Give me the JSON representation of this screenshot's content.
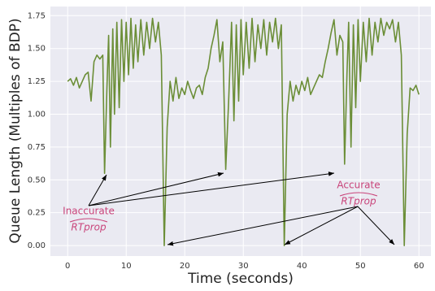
{
  "chart_data": {
    "type": "line",
    "xlabel": "Time (seconds)",
    "ylabel": "Queue Length (Multiples of BDP)",
    "xlim": [
      -2.95,
      62.05
    ],
    "ylim": [
      -0.08,
      1.82
    ],
    "xticks": [
      0,
      10,
      20,
      30,
      40,
      50,
      60
    ],
    "yticks": [
      {
        "value": 0,
        "label": "0.00"
      },
      {
        "value": 0.25,
        "label": "0.25"
      },
      {
        "value": 0.5,
        "label": "0.50"
      },
      {
        "value": 0.75,
        "label": "0.75"
      },
      {
        "value": 1,
        "label": "1.00"
      },
      {
        "value": 1.25,
        "label": "1.25"
      },
      {
        "value": 1.5,
        "label": "1.50"
      },
      {
        "value": 1.75,
        "label": "1.75"
      }
    ],
    "grid": true,
    "annotations": [
      {
        "text": "Inaccurate",
        "symbol": "RTprop"
      },
      {
        "text": "Accurate",
        "symbol": "RTprop"
      }
    ],
    "series": [
      {
        "color": "#6b8e37",
        "x": [
          0,
          0.5,
          1,
          1.5,
          2,
          2.5,
          3,
          3.5,
          4,
          4.5,
          5,
          5.5,
          6,
          6.3,
          6.7,
          7,
          7.3,
          7.7,
          8,
          8.4,
          8.8,
          9.2,
          9.6,
          10,
          10.4,
          10.8,
          11.2,
          11.6,
          12,
          12.5,
          13,
          13.5,
          14,
          14.5,
          15,
          15.5,
          16,
          16.5,
          17,
          17.5,
          18,
          18.5,
          19,
          19.5,
          20,
          20.5,
          21,
          21.5,
          22,
          22.5,
          23,
          23.5,
          24,
          24.5,
          25,
          25.5,
          26,
          26.5,
          27,
          27.5,
          28,
          28.4,
          28.8,
          29.2,
          29.6,
          30,
          30.5,
          31,
          31.5,
          32,
          32.5,
          33,
          33.5,
          34,
          34.5,
          35,
          35.5,
          36,
          36.5,
          37,
          37.5,
          38,
          38.5,
          39,
          39.5,
          40,
          40.5,
          41,
          41.5,
          42,
          42.5,
          43,
          43.5,
          44,
          44.5,
          45,
          45.5,
          46,
          46.5,
          47,
          47.3,
          47.7,
          48,
          48.4,
          48.8,
          49.2,
          49.6,
          50,
          50.5,
          51,
          51.5,
          52,
          52.5,
          53,
          53.5,
          54,
          54.5,
          55,
          55.5,
          56,
          56.5,
          57,
          57.5,
          58,
          58.5,
          59,
          59.5,
          60
        ],
        "values": [
          1.25,
          1.27,
          1.22,
          1.28,
          1.2,
          1.25,
          1.3,
          1.32,
          1.1,
          1.4,
          1.45,
          1.42,
          1.45,
          0.55,
          1.2,
          1.6,
          0.75,
          1.65,
          1.0,
          1.7,
          1.05,
          1.72,
          1.25,
          1.7,
          1.3,
          1.73,
          1.35,
          1.68,
          1.4,
          1.72,
          1.45,
          1.7,
          1.5,
          1.73,
          1.55,
          1.7,
          1.45,
          0.0,
          0.9,
          1.25,
          1.1,
          1.28,
          1.12,
          1.2,
          1.15,
          1.25,
          1.18,
          1.12,
          1.2,
          1.22,
          1.15,
          1.28,
          1.35,
          1.5,
          1.6,
          1.72,
          1.4,
          1.55,
          0.58,
          1.1,
          1.7,
          0.95,
          1.68,
          1.1,
          1.72,
          1.3,
          1.7,
          1.35,
          1.73,
          1.4,
          1.68,
          1.5,
          1.72,
          1.45,
          1.7,
          1.55,
          1.73,
          1.5,
          1.68,
          0.0,
          1.0,
          1.25,
          1.1,
          1.22,
          1.15,
          1.25,
          1.18,
          1.28,
          1.15,
          1.2,
          1.25,
          1.3,
          1.28,
          1.4,
          1.5,
          1.62,
          1.72,
          1.45,
          1.6,
          1.55,
          0.62,
          1.3,
          1.7,
          0.75,
          1.68,
          1.05,
          1.72,
          1.25,
          1.7,
          1.4,
          1.73,
          1.45,
          1.7,
          1.55,
          1.73,
          1.6,
          1.7,
          1.65,
          1.72,
          1.55,
          1.7,
          1.45,
          0.0,
          0.85,
          1.2,
          1.18,
          1.22,
          1.15
        ]
      }
    ]
  }
}
